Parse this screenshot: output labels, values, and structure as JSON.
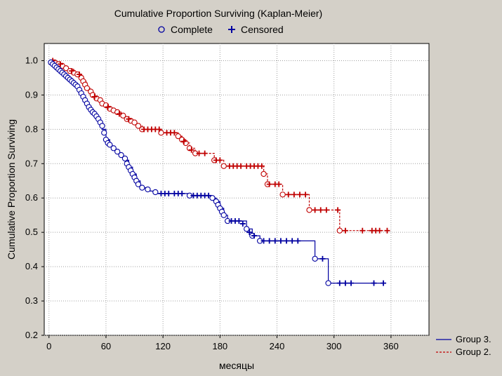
{
  "chart_data": {
    "type": "line",
    "title": "Cumulative Proportion Surviving (Kaplan-Meier)",
    "xlabel": "месяцы",
    "ylabel": "Cumulative Proportion Surviving",
    "xlim": [
      -5,
      400
    ],
    "ylim": [
      0.2,
      1.05
    ],
    "xticks": [
      0,
      60,
      120,
      180,
      240,
      300,
      360
    ],
    "yticks": [
      0.2,
      0.3,
      0.4,
      0.5,
      0.6,
      0.7,
      0.8,
      0.9,
      1.0
    ],
    "ytick_labels": [
      "0.2",
      "0.3",
      "0.4",
      "0.5",
      "0.6",
      "0.7",
      "0.8",
      "0.9",
      "1.0"
    ],
    "grid": true,
    "marker_legend": {
      "position": "top",
      "entries": [
        {
          "label": "Complete",
          "marker": "circle"
        },
        {
          "label": "Censored",
          "marker": "plus"
        }
      ]
    },
    "series_legend_position": "bottom-right",
    "series": [
      {
        "name": "Group 3.",
        "color": "#0000a0",
        "line_style": "solid",
        "steps": [
          [
            0,
            1.0
          ],
          [
            3,
            0.99
          ],
          [
            6,
            0.98
          ],
          [
            10,
            0.97
          ],
          [
            14,
            0.96
          ],
          [
            18,
            0.95
          ],
          [
            22,
            0.94
          ],
          [
            26,
            0.93
          ],
          [
            30,
            0.92
          ],
          [
            33,
            0.9
          ],
          [
            36,
            0.88
          ],
          [
            40,
            0.86
          ],
          [
            44,
            0.85
          ],
          [
            48,
            0.84
          ],
          [
            52,
            0.82
          ],
          [
            56,
            0.8
          ],
          [
            60,
            0.77
          ],
          [
            64,
            0.75
          ],
          [
            68,
            0.74
          ],
          [
            72,
            0.73
          ],
          [
            76,
            0.72
          ],
          [
            80,
            0.71
          ],
          [
            84,
            0.69
          ],
          [
            88,
            0.67
          ],
          [
            92,
            0.65
          ],
          [
            96,
            0.63
          ],
          [
            104,
            0.62
          ],
          [
            114,
            0.613
          ],
          [
            148,
            0.607
          ],
          [
            172,
            0.6
          ],
          [
            176,
            0.59
          ],
          [
            180,
            0.57
          ],
          [
            184,
            0.55
          ],
          [
            188,
            0.533
          ],
          [
            208,
            0.51
          ],
          [
            214,
            0.49
          ],
          [
            222,
            0.475
          ],
          [
            280,
            0.423
          ],
          [
            294,
            0.352
          ],
          [
            352,
            0.352
          ]
        ],
        "complete": [
          [
            2,
            0.995
          ],
          [
            4,
            0.99
          ],
          [
            6,
            0.985
          ],
          [
            8,
            0.98
          ],
          [
            10,
            0.975
          ],
          [
            12,
            0.97
          ],
          [
            14,
            0.965
          ],
          [
            16,
            0.96
          ],
          [
            18,
            0.955
          ],
          [
            20,
            0.95
          ],
          [
            22,
            0.945
          ],
          [
            24,
            0.94
          ],
          [
            26,
            0.935
          ],
          [
            28,
            0.93
          ],
          [
            30,
            0.925
          ],
          [
            32,
            0.915
          ],
          [
            34,
            0.905
          ],
          [
            36,
            0.895
          ],
          [
            38,
            0.885
          ],
          [
            40,
            0.875
          ],
          [
            42,
            0.865
          ],
          [
            44,
            0.857
          ],
          [
            46,
            0.85
          ],
          [
            48,
            0.845
          ],
          [
            50,
            0.838
          ],
          [
            52,
            0.83
          ],
          [
            54,
            0.82
          ],
          [
            56,
            0.81
          ],
          [
            58,
            0.79
          ],
          [
            60,
            0.77
          ],
          [
            62,
            0.76
          ],
          [
            64,
            0.755
          ],
          [
            68,
            0.745
          ],
          [
            72,
            0.735
          ],
          [
            76,
            0.725
          ],
          [
            80,
            0.715
          ],
          [
            82,
            0.7
          ],
          [
            84,
            0.69
          ],
          [
            86,
            0.68
          ],
          [
            88,
            0.67
          ],
          [
            90,
            0.66
          ],
          [
            92,
            0.65
          ],
          [
            94,
            0.64
          ],
          [
            98,
            0.63
          ],
          [
            104,
            0.625
          ],
          [
            112,
            0.617
          ],
          [
            148,
            0.607
          ],
          [
            172,
            0.6
          ],
          [
            176,
            0.59
          ],
          [
            178,
            0.58
          ],
          [
            180,
            0.57
          ],
          [
            182,
            0.56
          ],
          [
            184,
            0.55
          ],
          [
            188,
            0.533
          ],
          [
            208,
            0.51
          ],
          [
            214,
            0.49
          ],
          [
            222,
            0.475
          ],
          [
            280,
            0.423
          ],
          [
            294,
            0.352
          ]
        ],
        "censored": [
          [
            118,
            0.613
          ],
          [
            122,
            0.613
          ],
          [
            126,
            0.613
          ],
          [
            132,
            0.613
          ],
          [
            136,
            0.613
          ],
          [
            140,
            0.613
          ],
          [
            152,
            0.607
          ],
          [
            156,
            0.607
          ],
          [
            160,
            0.607
          ],
          [
            164,
            0.607
          ],
          [
            168,
            0.607
          ],
          [
            192,
            0.533
          ],
          [
            196,
            0.533
          ],
          [
            200,
            0.533
          ],
          [
            204,
            0.525
          ],
          [
            211,
            0.5
          ],
          [
            216,
            0.49
          ],
          [
            226,
            0.475
          ],
          [
            232,
            0.475
          ],
          [
            238,
            0.475
          ],
          [
            244,
            0.475
          ],
          [
            250,
            0.475
          ],
          [
            256,
            0.475
          ],
          [
            262,
            0.475
          ],
          [
            288,
            0.423
          ],
          [
            306,
            0.352
          ],
          [
            312,
            0.352
          ],
          [
            318,
            0.352
          ],
          [
            342,
            0.352
          ],
          [
            352,
            0.352
          ]
        ]
      },
      {
        "name": "Group 2.",
        "color": "#c00000",
        "line_style": "dashed",
        "steps": [
          [
            0,
            1.0
          ],
          [
            8,
            0.99
          ],
          [
            14,
            0.985
          ],
          [
            20,
            0.975
          ],
          [
            26,
            0.965
          ],
          [
            32,
            0.955
          ],
          [
            36,
            0.94
          ],
          [
            40,
            0.92
          ],
          [
            44,
            0.905
          ],
          [
            48,
            0.895
          ],
          [
            52,
            0.885
          ],
          [
            56,
            0.875
          ],
          [
            60,
            0.865
          ],
          [
            64,
            0.857
          ],
          [
            70,
            0.85
          ],
          [
            76,
            0.84
          ],
          [
            82,
            0.83
          ],
          [
            88,
            0.82
          ],
          [
            92,
            0.81
          ],
          [
            98,
            0.8
          ],
          [
            118,
            0.79
          ],
          [
            136,
            0.78
          ],
          [
            140,
            0.77
          ],
          [
            144,
            0.76
          ],
          [
            148,
            0.745
          ],
          [
            154,
            0.73
          ],
          [
            174,
            0.71
          ],
          [
            184,
            0.693
          ],
          [
            226,
            0.67
          ],
          [
            230,
            0.64
          ],
          [
            246,
            0.61
          ],
          [
            274,
            0.565
          ],
          [
            306,
            0.505
          ],
          [
            355,
            0.505
          ]
        ],
        "complete": [
          [
            6,
            0.995
          ],
          [
            10,
            0.99
          ],
          [
            14,
            0.985
          ],
          [
            18,
            0.978
          ],
          [
            22,
            0.97
          ],
          [
            26,
            0.965
          ],
          [
            30,
            0.96
          ],
          [
            34,
            0.95
          ],
          [
            36,
            0.94
          ],
          [
            38,
            0.93
          ],
          [
            40,
            0.92
          ],
          [
            44,
            0.91
          ],
          [
            46,
            0.9
          ],
          [
            50,
            0.89
          ],
          [
            54,
            0.885
          ],
          [
            56,
            0.875
          ],
          [
            60,
            0.87
          ],
          [
            64,
            0.86
          ],
          [
            68,
            0.855
          ],
          [
            72,
            0.85
          ],
          [
            78,
            0.84
          ],
          [
            82,
            0.83
          ],
          [
            86,
            0.825
          ],
          [
            90,
            0.82
          ],
          [
            94,
            0.81
          ],
          [
            98,
            0.8
          ],
          [
            118,
            0.79
          ],
          [
            136,
            0.78
          ],
          [
            140,
            0.77
          ],
          [
            144,
            0.76
          ],
          [
            148,
            0.745
          ],
          [
            154,
            0.73
          ],
          [
            174,
            0.71
          ],
          [
            184,
            0.693
          ],
          [
            226,
            0.67
          ],
          [
            230,
            0.64
          ],
          [
            246,
            0.61
          ],
          [
            274,
            0.565
          ],
          [
            306,
            0.505
          ]
        ],
        "censored": [
          [
            4,
            1.0
          ],
          [
            12,
            0.99
          ],
          [
            24,
            0.97
          ],
          [
            32,
            0.96
          ],
          [
            48,
            0.895
          ],
          [
            62,
            0.865
          ],
          [
            74,
            0.845
          ],
          [
            84,
            0.83
          ],
          [
            100,
            0.8
          ],
          [
            104,
            0.8
          ],
          [
            108,
            0.8
          ],
          [
            112,
            0.8
          ],
          [
            116,
            0.8
          ],
          [
            124,
            0.79
          ],
          [
            128,
            0.79
          ],
          [
            132,
            0.79
          ],
          [
            142,
            0.765
          ],
          [
            150,
            0.74
          ],
          [
            158,
            0.73
          ],
          [
            164,
            0.73
          ],
          [
            176,
            0.71
          ],
          [
            180,
            0.71
          ],
          [
            190,
            0.693
          ],
          [
            194,
            0.693
          ],
          [
            198,
            0.693
          ],
          [
            202,
            0.693
          ],
          [
            208,
            0.693
          ],
          [
            212,
            0.693
          ],
          [
            216,
            0.693
          ],
          [
            220,
            0.693
          ],
          [
            224,
            0.693
          ],
          [
            232,
            0.64
          ],
          [
            238,
            0.64
          ],
          [
            242,
            0.64
          ],
          [
            252,
            0.61
          ],
          [
            258,
            0.61
          ],
          [
            264,
            0.61
          ],
          [
            270,
            0.61
          ],
          [
            280,
            0.565
          ],
          [
            286,
            0.565
          ],
          [
            292,
            0.565
          ],
          [
            304,
            0.565
          ],
          [
            312,
            0.505
          ],
          [
            330,
            0.505
          ],
          [
            340,
            0.505
          ],
          [
            344,
            0.505
          ],
          [
            348,
            0.505
          ],
          [
            356,
            0.505
          ]
        ]
      }
    ]
  }
}
